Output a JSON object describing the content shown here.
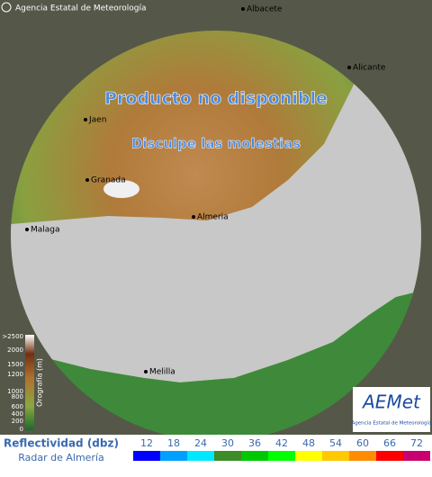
{
  "header": {
    "credit": "Agencia Estatal de Meteorología"
  },
  "notice": {
    "title": "Producto no disponible",
    "subtitle": "Disculpe las molestias"
  },
  "cities": [
    {
      "label": "Albacete"
    },
    {
      "label": "Alicante"
    },
    {
      "label": "Jaen"
    },
    {
      "label": "Granada"
    },
    {
      "label": "Almeria"
    },
    {
      "label": "Malaga"
    },
    {
      "label": "Melilla"
    }
  ],
  "orography": {
    "title": "Orografía (m)",
    "labels": [
      ">2500",
      "2000",
      "1500",
      "1200",
      "1000",
      "800",
      "600",
      "400",
      "200",
      "0"
    ]
  },
  "logo": {
    "name": "AEMet",
    "caption": "Agencia Estatal de Meteorología"
  },
  "legend": {
    "title": "Reflectividad (dbz)",
    "subtitle": "Radar de Almería",
    "items": [
      {
        "label": "12",
        "color": "#0000ff"
      },
      {
        "label": "18",
        "color": "#00a0ff"
      },
      {
        "label": "24",
        "color": "#00e8ff"
      },
      {
        "label": "30",
        "color": "#3c8c28"
      },
      {
        "label": "36",
        "color": "#00c800"
      },
      {
        "label": "42",
        "color": "#00ff00"
      },
      {
        "label": "48",
        "color": "#ffff00"
      },
      {
        "label": "54",
        "color": "#ffc800"
      },
      {
        "label": "60",
        "color": "#ff8c00"
      },
      {
        "label": "66",
        "color": "#ff0000"
      },
      {
        "label": "72",
        "color": "#c8006e"
      }
    ]
  }
}
